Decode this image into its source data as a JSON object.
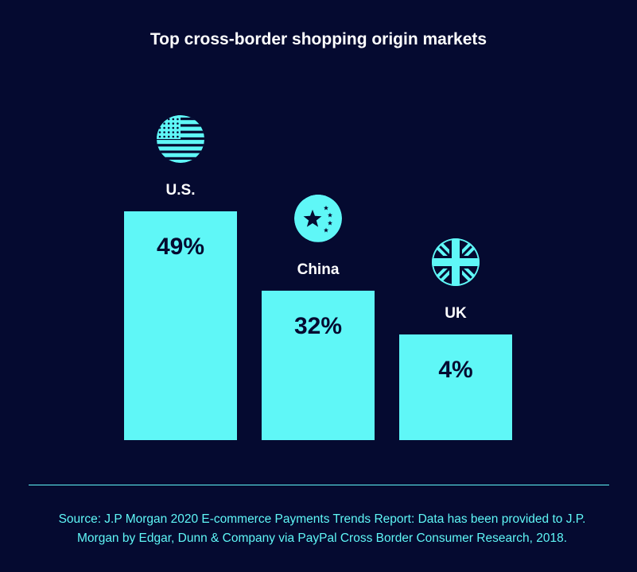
{
  "title": "Top cross-border shopping origin markets",
  "chart_data": {
    "type": "bar",
    "categories": [
      "U.S.",
      "China",
      "UK"
    ],
    "values": [
      49,
      32,
      4
    ],
    "value_labels": [
      "49%",
      "32%",
      "4%"
    ],
    "icons": [
      "us-flag-icon",
      "china-flag-icon",
      "uk-flag-icon"
    ],
    "title": "Top cross-border shopping origin markets",
    "xlabel": "",
    "ylabel": "",
    "ylim": [
      0,
      49
    ],
    "grid": false
  },
  "source": "Source: J.P Morgan 2020 E-commerce Payments Trends Report: Data has been provided to J.P. Morgan by Edgar, Dunn & Company via PayPal Cross Border Consumer Research, 2018.",
  "colors": {
    "background": "#050a30",
    "bar": "#5ff7f7",
    "text": "#ffffff",
    "label_on_bar": "#050a30"
  }
}
